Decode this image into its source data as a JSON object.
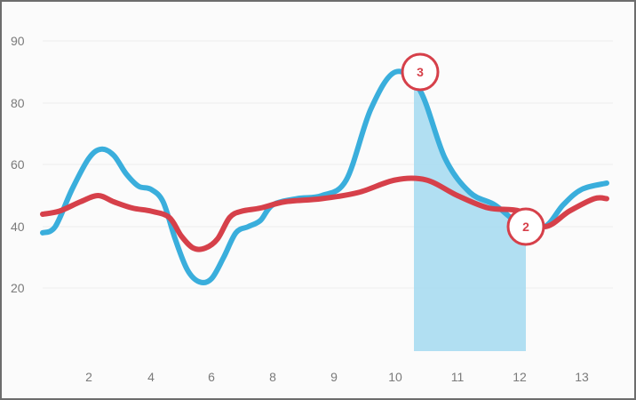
{
  "chart_data": {
    "type": "line",
    "title": "",
    "xlabel": "",
    "ylabel": "",
    "grid": true,
    "x_range": [
      0.9,
      13.5
    ],
    "y_range": [
      0,
      97
    ],
    "y_ticks": [
      {
        "value": 20,
        "label": "20"
      },
      {
        "value": 40,
        "label": "40"
      },
      {
        "value": 60,
        "label": "60"
      },
      {
        "value": 80,
        "label": "80"
      },
      {
        "value": 90,
        "label": "90"
      }
    ],
    "x_ticks": [
      {
        "value": 2,
        "label": "2"
      },
      {
        "value": 4,
        "label": "4"
      },
      {
        "value": 6,
        "label": "6"
      },
      {
        "value": 8,
        "label": "8"
      },
      {
        "value": 9,
        "label": "9"
      },
      {
        "value": 10,
        "label": "10"
      },
      {
        "value": 11,
        "label": "11"
      },
      {
        "value": 12,
        "label": "12"
      },
      {
        "value": 13,
        "label": "13"
      }
    ],
    "highlight_region": {
      "x_start": 10.3,
      "x_end": 12.1,
      "color": "#a8dcf1"
    },
    "series": [
      {
        "color": "#3aaedc",
        "points": [
          [
            0.9,
            38
          ],
          [
            1.2,
            40
          ],
          [
            1.6,
            52
          ],
          [
            2.0,
            62
          ],
          [
            2.4,
            65
          ],
          [
            2.8,
            63
          ],
          [
            3.2,
            57
          ],
          [
            3.6,
            53
          ],
          [
            4.0,
            52
          ],
          [
            4.4,
            48
          ],
          [
            4.8,
            36
          ],
          [
            5.2,
            26
          ],
          [
            5.6,
            22
          ],
          [
            6.0,
            23
          ],
          [
            6.4,
            30
          ],
          [
            6.8,
            38
          ],
          [
            7.2,
            40
          ],
          [
            7.6,
            42
          ],
          [
            8.0,
            47
          ],
          [
            8.4,
            49
          ],
          [
            8.8,
            50
          ],
          [
            9.2,
            55
          ],
          [
            9.6,
            78
          ],
          [
            10.0,
            85
          ],
          [
            10.4,
            82
          ],
          [
            10.8,
            62
          ],
          [
            11.2,
            51
          ],
          [
            11.6,
            47
          ],
          [
            12.0,
            41
          ],
          [
            12.4,
            40
          ],
          [
            12.7,
            47
          ],
          [
            13.0,
            52
          ],
          [
            13.4,
            54
          ]
        ]
      },
      {
        "color": "#d6404a",
        "points": [
          [
            0.9,
            44
          ],
          [
            1.3,
            45
          ],
          [
            1.8,
            48
          ],
          [
            2.3,
            50
          ],
          [
            2.8,
            48
          ],
          [
            3.4,
            46
          ],
          [
            4.0,
            45
          ],
          [
            4.6,
            43
          ],
          [
            5.0,
            37
          ],
          [
            5.4,
            33
          ],
          [
            5.8,
            33
          ],
          [
            6.2,
            36
          ],
          [
            6.6,
            43
          ],
          [
            7.0,
            45
          ],
          [
            7.6,
            46
          ],
          [
            8.2,
            48
          ],
          [
            8.8,
            49
          ],
          [
            9.4,
            51
          ],
          [
            10.0,
            55
          ],
          [
            10.5,
            55
          ],
          [
            11.0,
            50
          ],
          [
            11.5,
            46
          ],
          [
            12.0,
            45
          ],
          [
            12.4,
            40
          ],
          [
            12.8,
            45
          ],
          [
            13.2,
            49
          ],
          [
            13.4,
            49
          ]
        ]
      }
    ],
    "annotations": [
      {
        "x": 10.4,
        "y": 85,
        "label": "3"
      },
      {
        "x": 12.1,
        "y": 40,
        "label": "2"
      }
    ]
  }
}
